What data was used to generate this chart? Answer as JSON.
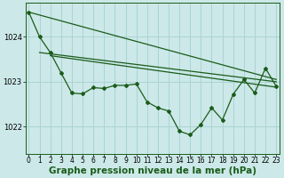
{
  "xlabel": "Graphe pression niveau de la mer (hPa)",
  "ylabel": "",
  "bg_color": "#cce8e8",
  "grid_color": "#aad4d4",
  "line_color": "#1a5c1a",
  "x_ticks": [
    0,
    1,
    2,
    3,
    4,
    5,
    6,
    7,
    8,
    9,
    10,
    11,
    12,
    13,
    14,
    15,
    16,
    17,
    18,
    19,
    20,
    21,
    22,
    23
  ],
  "y_ticks": [
    1022,
    1023,
    1024
  ],
  "ylim": [
    1021.4,
    1024.75
  ],
  "xlim": [
    -0.3,
    23.3
  ],
  "data_y": [
    1024.55,
    1024.0,
    1023.65,
    1023.2,
    1022.75,
    1022.73,
    1022.87,
    1022.85,
    1022.92,
    1022.92,
    1022.95,
    1022.55,
    1022.42,
    1022.35,
    1021.9,
    1021.82,
    1022.05,
    1022.42,
    1022.15,
    1022.72,
    1023.05,
    1022.75,
    1023.3,
    1022.9
  ],
  "smooth_lines": [
    {
      "x0": 0,
      "y0": 1024.55,
      "x1": 23,
      "y1": 1023.05
    },
    {
      "x0": 1,
      "y0": 1023.65,
      "x1": 23,
      "y1": 1023.0
    },
    {
      "x0": 2,
      "y0": 1023.58,
      "x1": 23,
      "y1": 1022.88
    }
  ],
  "tick_fontsize": 5.5,
  "xlabel_fontsize": 7.5,
  "xlabel_fontweight": "bold"
}
